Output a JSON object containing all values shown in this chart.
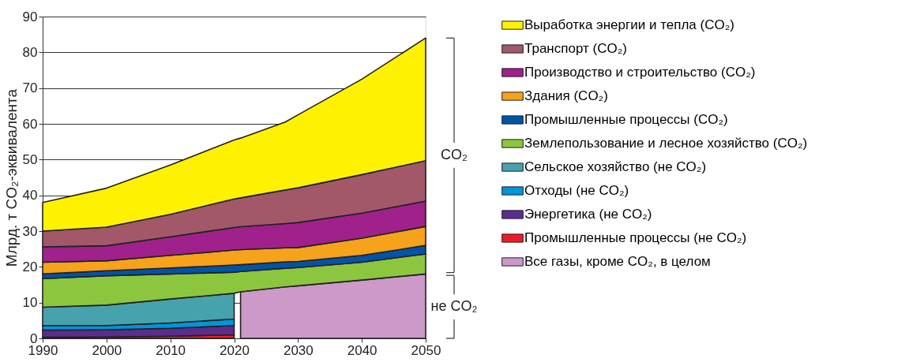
{
  "chart_data": {
    "type": "area",
    "stacked": true,
    "ylabel": "Млрд. т CO₂-эквивалента",
    "x": [
      1990,
      2000,
      2010,
      2020,
      2021,
      2028,
      2030,
      2040,
      2050
    ],
    "xlim": [
      1990,
      2050
    ],
    "xticks": [
      1990,
      2000,
      2010,
      2020,
      2030,
      2040,
      2050
    ],
    "ylim": [
      0,
      90
    ],
    "yticks": [
      0,
      10,
      20,
      30,
      40,
      50,
      60,
      70,
      80,
      90
    ],
    "grid": "y",
    "legend": "right",
    "annotations": [
      "CO₂",
      "не CO₂"
    ],
    "series": [
      {
        "name": "Все газы, кроме CO₂, в целом",
        "color": "#cc99c9",
        "values": [
          null,
          null,
          null,
          null,
          13.0,
          14.4,
          14.7,
          16.3,
          18.0
        ]
      },
      {
        "name": "Промышленные процессы (не CO₂)",
        "color": "#ed1c24",
        "values": [
          0.3,
          0.4,
          0.6,
          1.0,
          null,
          null,
          null,
          null,
          null
        ]
      },
      {
        "name": "Энергетика (не CO₂)",
        "color": "#5b2d8e",
        "values": [
          2.0,
          2.0,
          2.2,
          2.6,
          null,
          null,
          null,
          null,
          null
        ]
      },
      {
        "name": "Отходы (не CO₂)",
        "color": "#0095da",
        "values": [
          1.3,
          1.2,
          1.5,
          1.8,
          null,
          null,
          null,
          null,
          null
        ]
      },
      {
        "name": "Сельское хозяйство (не CO₂)",
        "color": "#46a3ad",
        "values": [
          5.1,
          5.7,
          6.7,
          7.2,
          null,
          null,
          null,
          null,
          null
        ]
      },
      {
        "name": "Землепользование и лесное хозяйство (CO₂)",
        "color": "#8cc63f",
        "values": [
          8.0,
          8.2,
          7.0,
          5.9,
          5.7,
          5.2,
          5.1,
          5.0,
          5.6
        ]
      },
      {
        "name": "Промышленные процессы (CO₂)",
        "color": "#0054a6",
        "values": [
          1.3,
          1.4,
          1.7,
          2.0,
          1.9,
          1.8,
          1.7,
          1.9,
          2.4
        ]
      },
      {
        "name": "Здания (CO₂)",
        "color": "#f7a21b",
        "values": [
          3.3,
          2.8,
          3.5,
          4.2,
          4.2,
          3.9,
          3.9,
          4.8,
          5.3
        ]
      },
      {
        "name": "Производство и строительство (CO₂)",
        "color": "#a0218c",
        "values": [
          4.3,
          4.2,
          5.2,
          6.3,
          6.4,
          6.8,
          7.0,
          7.0,
          7.1
        ]
      },
      {
        "name": "Транспорт (CO₂)",
        "color": "#a25868",
        "values": [
          4.4,
          5.2,
          6.3,
          8.0,
          8.1,
          9.4,
          9.7,
          10.8,
          11.3
        ]
      },
      {
        "name": "Выработка энергии и тепла (CO₂)",
        "color": "#fff200",
        "values": [
          8.0,
          10.9,
          13.8,
          16.5,
          16.7,
          19.0,
          20.4,
          26.7,
          34.3
        ]
      }
    ]
  }
}
